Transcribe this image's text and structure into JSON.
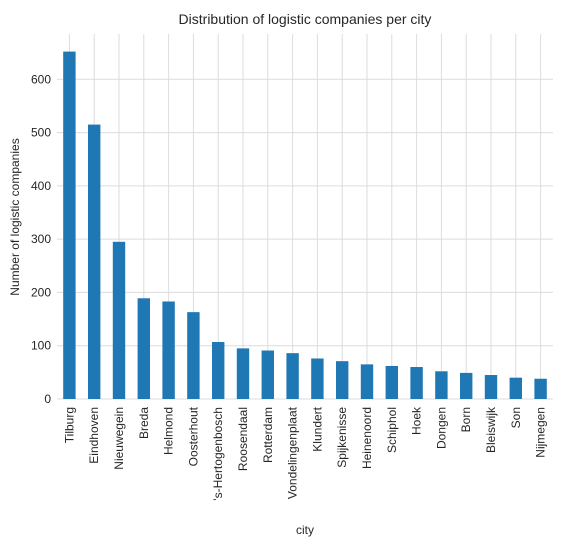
{
  "chart_data": {
    "type": "bar",
    "title": "Distribution of logistic companies per city",
    "xlabel": "city",
    "ylabel": "Number of logistic companies",
    "categories": [
      "Tilburg",
      "Eindhoven",
      "Nieuwegein",
      "Breda",
      "Helmond",
      "Oosterhout",
      "'s-Hertogenbosch",
      "Roosendaal",
      "Rotterdam",
      "Vondelingenplaat",
      "Klundert",
      "Spijkenisse",
      "Heinenoord",
      "Schiphol",
      "Hoek",
      "Dongen",
      "Born",
      "Bleiswijk",
      "Son",
      "Nijmegen"
    ],
    "values": [
      652,
      515,
      295,
      189,
      183,
      163,
      107,
      95,
      91,
      86,
      76,
      71,
      65,
      62,
      60,
      52,
      49,
      45,
      40,
      38
    ],
    "ylim": [
      0,
      685
    ],
    "yticks": [
      0,
      100,
      200,
      300,
      400,
      500,
      600
    ],
    "grid": true,
    "bar_color": "#1f77b4",
    "grid_color": "#dcdcdc",
    "background": "#ffffff"
  }
}
